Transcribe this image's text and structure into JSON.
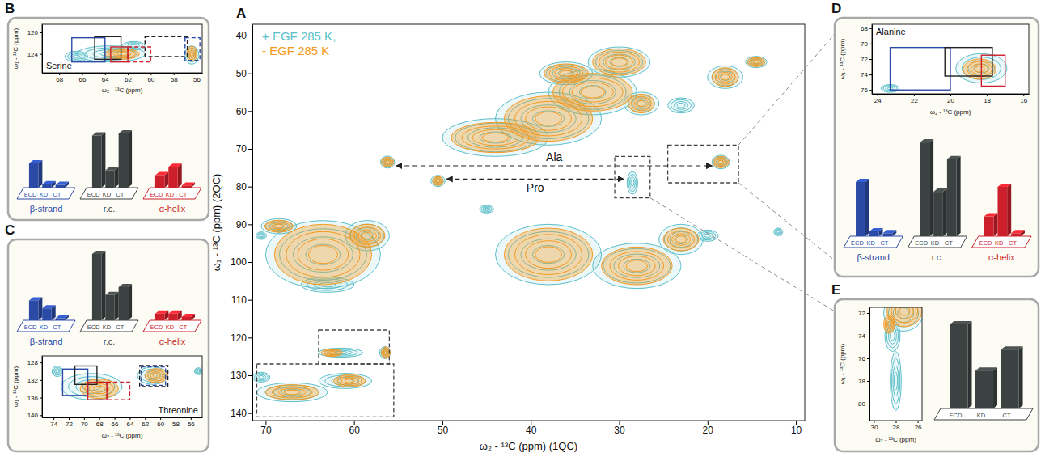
{
  "chart_data": [
    {
      "panel_label": "A",
      "type": "contour",
      "xlabel": "ω₂ - ¹³C (ppm) (1QC)",
      "ylabel": "ω₁ - ¹³C (ppm) (2QC)",
      "xlim": [
        71.5,
        9
      ],
      "ylim": [
        37,
        142
      ],
      "xticks": [
        70,
        60,
        50,
        40,
        30,
        20,
        10
      ],
      "yticks": [
        40,
        50,
        60,
        70,
        80,
        90,
        100,
        110,
        120,
        130,
        140
      ],
      "legend": "upper left",
      "series": [
        {
          "name": "+ EGF 285 K,",
          "color": "#5bbfc9",
          "peaks": [
            {
              "x": 63.5,
              "y": 98,
              "rx": 6.5,
              "ry": 9
            },
            {
              "x": 58.5,
              "y": 93,
              "rx": 2.5,
              "ry": 4
            },
            {
              "x": 68.5,
              "y": 90.5,
              "rx": 2,
              "ry": 2
            },
            {
              "x": 63,
              "y": 106,
              "rx": 3,
              "ry": 2
            },
            {
              "x": 44,
              "y": 67,
              "rx": 6,
              "ry": 5
            },
            {
              "x": 38,
              "y": 62,
              "rx": 6,
              "ry": 7
            },
            {
              "x": 33,
              "y": 55,
              "rx": 5,
              "ry": 6
            },
            {
              "x": 30,
              "y": 47,
              "rx": 3.5,
              "ry": 4
            },
            {
              "x": 36,
              "y": 50,
              "rx": 3,
              "ry": 3
            },
            {
              "x": 27.5,
              "y": 58,
              "rx": 2,
              "ry": 3
            },
            {
              "x": 23,
              "y": 58.5,
              "rx": 1.5,
              "ry": 2
            },
            {
              "x": 18,
              "y": 51,
              "rx": 2,
              "ry": 3
            },
            {
              "x": 14.5,
              "y": 47,
              "rx": 1.2,
              "ry": 1.5
            },
            {
              "x": 38,
              "y": 98,
              "rx": 6,
              "ry": 8
            },
            {
              "x": 28,
              "y": 101,
              "rx": 5,
              "ry": 6
            },
            {
              "x": 23,
              "y": 94,
              "rx": 2.5,
              "ry": 4
            },
            {
              "x": 20,
              "y": 93,
              "rx": 1.2,
              "ry": 1.5
            },
            {
              "x": 12,
              "y": 92,
              "rx": 0.5,
              "ry": 1
            },
            {
              "x": 56.2,
              "y": 73.5,
              "rx": 0.8,
              "ry": 1.6
            },
            {
              "x": 18.5,
              "y": 73.5,
              "rx": 1,
              "ry": 1.8
            },
            {
              "x": 50.5,
              "y": 78.5,
              "rx": 0.8,
              "ry": 1.5
            },
            {
              "x": 28.5,
              "y": 79,
              "rx": 0.6,
              "ry": 3
            },
            {
              "x": 61.5,
              "y": 124,
              "rx": 2.5,
              "ry": 1.2
            },
            {
              "x": 56.5,
              "y": 124,
              "rx": 0.6,
              "ry": 1.6
            },
            {
              "x": 67,
              "y": 134.5,
              "rx": 4,
              "ry": 2.5
            },
            {
              "x": 61,
              "y": 131.5,
              "rx": 3,
              "ry": 2
            },
            {
              "x": 70.5,
              "y": 130.5,
              "rx": 1,
              "ry": 1.3
            },
            {
              "x": 70.5,
              "y": 93,
              "rx": 0.6,
              "ry": 1
            },
            {
              "x": 45,
              "y": 86,
              "rx": 0.8,
              "ry": 1
            }
          ]
        },
        {
          "name": "- EGF 285 K",
          "color": "#f39a22",
          "peaks": [
            {
              "x": 63.5,
              "y": 98,
              "rx": 5.5,
              "ry": 8
            },
            {
              "x": 58.5,
              "y": 93,
              "rx": 2,
              "ry": 3
            },
            {
              "x": 68.5,
              "y": 90.5,
              "rx": 1.6,
              "ry": 1.6
            },
            {
              "x": 44,
              "y": 67,
              "rx": 5,
              "ry": 4
            },
            {
              "x": 38,
              "y": 62,
              "rx": 5,
              "ry": 6
            },
            {
              "x": 33,
              "y": 55,
              "rx": 4.5,
              "ry": 5
            },
            {
              "x": 30,
              "y": 47,
              "rx": 3,
              "ry": 3.5
            },
            {
              "x": 36,
              "y": 50,
              "rx": 2.5,
              "ry": 2.5
            },
            {
              "x": 27.5,
              "y": 58,
              "rx": 1.5,
              "ry": 2.5
            },
            {
              "x": 18,
              "y": 51,
              "rx": 1.5,
              "ry": 2.5
            },
            {
              "x": 14.5,
              "y": 47,
              "rx": 1,
              "ry": 1.2
            },
            {
              "x": 38,
              "y": 98,
              "rx": 5,
              "ry": 7
            },
            {
              "x": 28,
              "y": 101,
              "rx": 4,
              "ry": 5
            },
            {
              "x": 23,
              "y": 94,
              "rx": 2,
              "ry": 3
            },
            {
              "x": 56.2,
              "y": 73.5,
              "rx": 0.7,
              "ry": 1.3
            },
            {
              "x": 18.5,
              "y": 73.5,
              "rx": 0.9,
              "ry": 1.5
            },
            {
              "x": 50.5,
              "y": 78.5,
              "rx": 0.6,
              "ry": 1.2
            },
            {
              "x": 62.5,
              "y": 124,
              "rx": 1.2,
              "ry": 1
            },
            {
              "x": 56.4,
              "y": 124,
              "rx": 0.5,
              "ry": 1.5
            },
            {
              "x": 67,
              "y": 134.5,
              "rx": 3,
              "ry": 2
            },
            {
              "x": 60.5,
              "y": 131.5,
              "rx": 1.8,
              "ry": 1.6
            }
          ]
        }
      ],
      "regions": [
        {
          "x": [
            71,
            55.5
          ],
          "y": [
            127,
            141
          ],
          "color": "#444444",
          "line_style": "dashed"
        },
        {
          "x": [
            64,
            56
          ],
          "y": [
            118,
            127
          ],
          "color": "#444444",
          "line_style": "dashed"
        },
        {
          "x": [
            24.5,
            16.5
          ],
          "y": [
            69,
            79
          ],
          "color": "#444444",
          "line_style": "dashed"
        },
        {
          "x": [
            30.5,
            26.5
          ],
          "y": [
            72,
            83
          ],
          "color": "#444444",
          "line_style": "dashed"
        }
      ],
      "annotations": [
        {
          "text": "Ala",
          "x": [
            55.2,
            19.5
          ],
          "y": 74.5,
          "line_style": "dashed"
        },
        {
          "text": "Pro",
          "x": [
            49.5,
            29.5
          ],
          "y": 78,
          "line_style": "dashed"
        }
      ]
    },
    {
      "panel_label": "B",
      "type": "contour",
      "title": "Serine",
      "xlabel": "ω₂ - ¹³C (ppm)",
      "ylabel": "ω₁ - ¹³C (ppm)",
      "xlim": [
        69.5,
        55.5
      ],
      "ylim": [
        118.5,
        127.5
      ],
      "xticks": [
        68,
        66,
        64,
        62,
        60,
        58,
        56
      ],
      "yticks": [
        120,
        124
      ],
      "series": [
        {
          "color": "#5bbfc9",
          "peaks": [
            {
              "x": 63.5,
              "y": 124,
              "rx": 3,
              "ry": 1.5
            },
            {
              "x": 61.5,
              "y": 122.5,
              "rx": 1,
              "ry": 0.8
            },
            {
              "x": 66.5,
              "y": 124.5,
              "rx": 1,
              "ry": 1
            },
            {
              "x": 56.4,
              "y": 124.2,
              "rx": 0.6,
              "ry": 1.7
            }
          ]
        },
        {
          "color": "#f39a22",
          "peaks": [
            {
              "x": 62.5,
              "y": 124,
              "rx": 1.5,
              "ry": 1
            },
            {
              "x": 56.4,
              "y": 124,
              "rx": 0.45,
              "ry": 1.4
            }
          ]
        }
      ],
      "regions": [
        {
          "x": [
            66.9,
            64
          ],
          "y": [
            121,
            125.5
          ],
          "color": "#2b4aa6",
          "line_style": "solid"
        },
        {
          "x": [
            64.9,
            62.6
          ],
          "y": [
            120.8,
            125
          ],
          "color": "#222222",
          "line_style": "solid"
        },
        {
          "x": [
            63.5,
            62
          ],
          "y": [
            122.7,
            125.5
          ],
          "color": "#cc1f2b",
          "line_style": "solid"
        },
        {
          "x": [
            62,
            60
          ],
          "y": [
            122.7,
            125.5
          ],
          "color": "#cc1f2b",
          "line_style": "dashed"
        },
        {
          "x": [
            60.5,
            56.8
          ],
          "y": [
            120.8,
            124.5
          ],
          "color": "#222222",
          "line_style": "dashed"
        },
        {
          "x": [
            57,
            55.7
          ],
          "y": [
            121,
            125.2
          ],
          "color": "#2b4aa6",
          "line_style": "dashed"
        }
      ]
    },
    {
      "type": "bar",
      "categories": [
        "ECD",
        "KD",
        "CT"
      ],
      "series": [
        {
          "name": "β-strand",
          "color": "#2b4aa6",
          "values": [
            35,
            5,
            4
          ]
        },
        {
          "name": "r.c.",
          "color": "#3c4141",
          "values": [
            75,
            25,
            78
          ]
        },
        {
          "name": "α-helix",
          "color": "#cc1f2b",
          "values": [
            18,
            30,
            3
          ]
        }
      ]
    },
    {
      "panel_label": "C",
      "type": "bar",
      "categories": [
        "ECD",
        "KD",
        "CT"
      ],
      "series": [
        {
          "name": "β-strand",
          "color": "#2b4aa6",
          "values": [
            30,
            18,
            3
          ]
        },
        {
          "name": "r.c.",
          "color": "#3c4141",
          "values": [
            100,
            38,
            50
          ]
        },
        {
          "name": "α-helix",
          "color": "#cc1f2b",
          "values": [
            10,
            10,
            5
          ]
        }
      ]
    },
    {
      "type": "contour",
      "title": "Threonine",
      "xlabel": "ω₂ - ¹³C (ppm)",
      "ylabel": "ω₁ - ¹³C (ppm)",
      "xlim": [
        75.5,
        54.5
      ],
      "ylim": [
        126.5,
        140.5
      ],
      "xticks": [
        74,
        72,
        70,
        68,
        66,
        64,
        62,
        60,
        58,
        56
      ],
      "yticks": [
        128,
        132,
        136,
        140
      ],
      "series": [
        {
          "color": "#5bbfc9",
          "peaks": [
            {
              "x": 69,
              "y": 133.5,
              "rx": 4,
              "ry": 3
            },
            {
              "x": 61,
              "y": 131,
              "rx": 2,
              "ry": 2
            },
            {
              "x": 73.5,
              "y": 130,
              "rx": 0.7,
              "ry": 1.2
            },
            {
              "x": 55,
              "y": 130,
              "rx": 0.5,
              "ry": 0.8
            }
          ]
        },
        {
          "color": "#f39a22",
          "peaks": [
            {
              "x": 68,
              "y": 134,
              "rx": 2.5,
              "ry": 2.2
            },
            {
              "x": 60.5,
              "y": 131,
              "rx": 1.5,
              "ry": 1.6
            }
          ]
        }
      ],
      "regions": [
        {
          "x": [
            72.8,
            69.5
          ],
          "y": [
            129.5,
            135.5
          ],
          "color": "#2b4aa6",
          "line_style": "solid"
        },
        {
          "x": [
            71.2,
            68.3
          ],
          "y": [
            128.8,
            133
          ],
          "color": "#222222",
          "line_style": "solid"
        },
        {
          "x": [
            69.5,
            67
          ],
          "y": [
            132.5,
            136.5
          ],
          "color": "#cc1f2b",
          "line_style": "solid"
        },
        {
          "x": [
            67,
            64
          ],
          "y": [
            132.5,
            136.5
          ],
          "color": "#cc1f2b",
          "line_style": "dashed"
        },
        {
          "x": [
            62.7,
            59
          ],
          "y": [
            128.7,
            133.5
          ],
          "color": "#222222",
          "line_style": "dashed"
        },
        {
          "x": [
            62.5,
            59.3
          ],
          "y": [
            129,
            133.2
          ],
          "color": "#2b4aa6",
          "line_style": "dashed"
        }
      ]
    },
    {
      "panel_label": "D",
      "type": "contour",
      "title": "Alanine",
      "xlabel": "ω₂ - ¹³C (ppm)",
      "ylabel": "ω₁ - ¹³C (ppm)",
      "xlim": [
        24.3,
        15.7
      ],
      "ylim": [
        67.5,
        76.5
      ],
      "xticks": [
        24,
        22,
        20,
        18,
        16
      ],
      "yticks": [
        68,
        70,
        72,
        74,
        76
      ],
      "series": [
        {
          "color": "#5bbfc9",
          "peaks": [
            {
              "x": 18.3,
              "y": 73.2,
              "rx": 1.4,
              "ry": 1.9
            },
            {
              "x": 23.3,
              "y": 75.8,
              "rx": 0.5,
              "ry": 0.5
            }
          ]
        },
        {
          "color": "#f39a22",
          "peaks": [
            {
              "x": 18.4,
              "y": 73.3,
              "rx": 0.9,
              "ry": 1.3
            }
          ]
        }
      ],
      "regions": [
        {
          "x": [
            23.3,
            20
          ],
          "y": [
            70.5,
            76
          ],
          "color": "#2b4aa6",
          "line_style": "solid"
        },
        {
          "x": [
            20.3,
            17.7
          ],
          "y": [
            70.5,
            74.2
          ],
          "color": "#222222",
          "line_style": "solid"
        },
        {
          "x": [
            18.3,
            17
          ],
          "y": [
            71.5,
            75.5
          ],
          "color": "#cc1f2b",
          "line_style": "solid"
        }
      ]
    },
    {
      "type": "bar",
      "categories": [
        "ECD",
        "KD",
        "CT"
      ],
      "series": [
        {
          "name": "β-strand",
          "color": "#2b4aa6",
          "values": [
            55,
            5,
            3
          ]
        },
        {
          "name": "r.c.",
          "color": "#3c4141",
          "values": [
            95,
            45,
            78
          ]
        },
        {
          "name": "α-helix",
          "color": "#cc1f2b",
          "values": [
            20,
            50,
            3
          ]
        }
      ]
    },
    {
      "panel_label": "E",
      "type": "contour",
      "xlabel": "ω₂ - ¹³C (ppm)",
      "ylabel": "ω₁ - ¹³C (ppm)",
      "xlim": [
        30.4,
        25.6
      ],
      "ylim": [
        71.5,
        81.5
      ],
      "xticks": [
        30,
        28,
        26
      ],
      "yticks": [
        72,
        74,
        76,
        78,
        80
      ],
      "series": [
        {
          "color": "#5bbfc9",
          "peaks": [
            {
              "x": 28,
              "y": 78,
              "rx": 0.5,
              "ry": 2.6
            },
            {
              "x": 28.3,
              "y": 74,
              "rx": 0.7,
              "ry": 1.4
            },
            {
              "x": 27.3,
              "y": 72,
              "rx": 1.8,
              "ry": 1.6
            }
          ]
        },
        {
          "color": "#f39a22",
          "peaks": [
            {
              "x": 27.2,
              "y": 71.8,
              "rx": 1.6,
              "ry": 1.4
            },
            {
              "x": 28.6,
              "y": 73,
              "rx": 0.5,
              "ry": 0.8
            }
          ]
        }
      ]
    },
    {
      "type": "bar",
      "categories": [
        "ECD",
        "KD",
        "CT"
      ],
      "series": [
        {
          "color": "#3c4141",
          "values": [
            100,
            45,
            70
          ]
        }
      ]
    }
  ]
}
